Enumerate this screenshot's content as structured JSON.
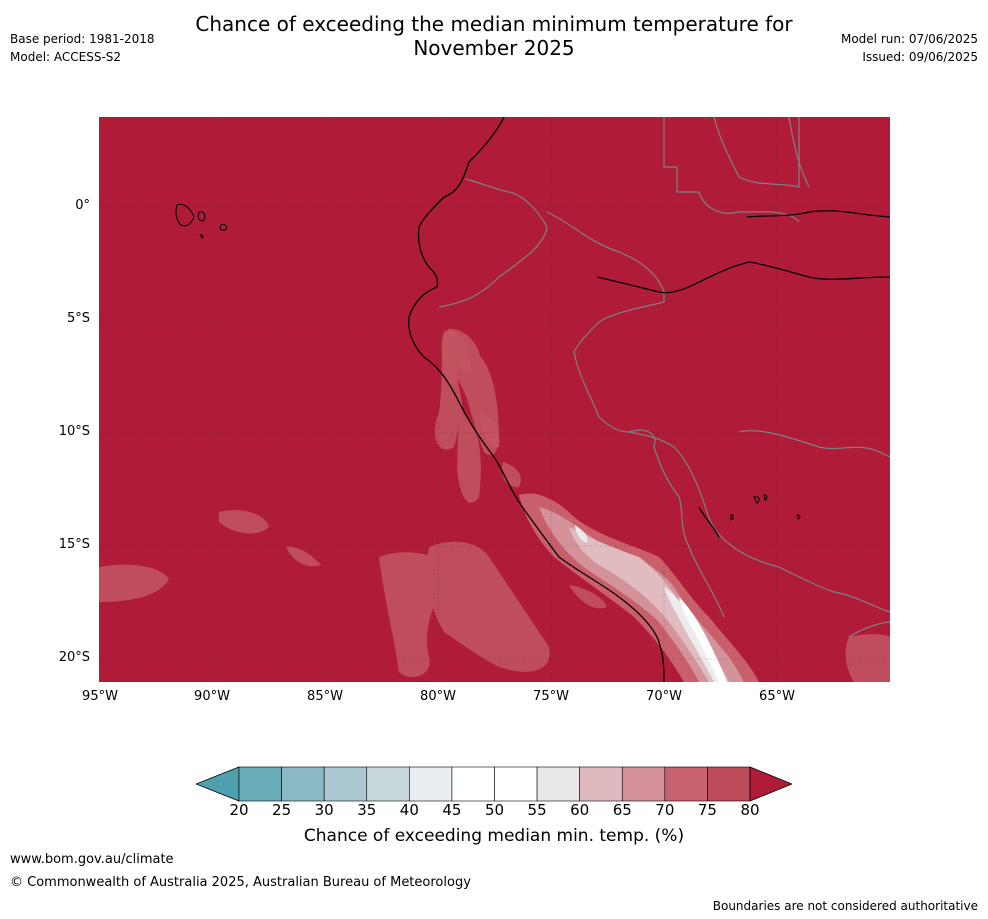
{
  "title_line1": "Chance of exceeding the median minimum temperature for",
  "title_line2": "November 2025",
  "base_period": "Base period: 1981-2018",
  "model": "Model: ACCESS-S2",
  "model_run": "Model run: 07/06/2025",
  "issued": "Issued: 09/06/2025",
  "lat_labels": [
    "0°",
    "5°S",
    "10°S",
    "15°S",
    "20°S"
  ],
  "lon_labels": [
    "95°W",
    "90°W",
    "85°W",
    "80°W",
    "75°W",
    "70°W",
    "65°W"
  ],
  "colorbar": {
    "title": "Chance of exceeding median min. temp. (%)",
    "ticks": [
      "20",
      "25",
      "30",
      "35",
      "40",
      "45",
      "50",
      "55",
      "60",
      "65",
      "70",
      "75",
      "80"
    ],
    "colors": [
      "#6aabb8",
      "#8bb9c5",
      "#a9c8cf",
      "#c7d7dc",
      "#e8eef1",
      "#ffffff",
      "#ffffff",
      "#e8e8e8",
      "#e0b9bf",
      "#d49199",
      "#c7636f",
      "#bd4a58"
    ],
    "low_color": "#4fa0ad",
    "high_color": "#b01c38"
  },
  "footer_url": "www.bom.gov.au/climate",
  "copyright": "© Commonwealth of Australia 2025, Australian Bureau of Meteorology",
  "disclaimer": "Boundaries are not considered authoritative"
}
